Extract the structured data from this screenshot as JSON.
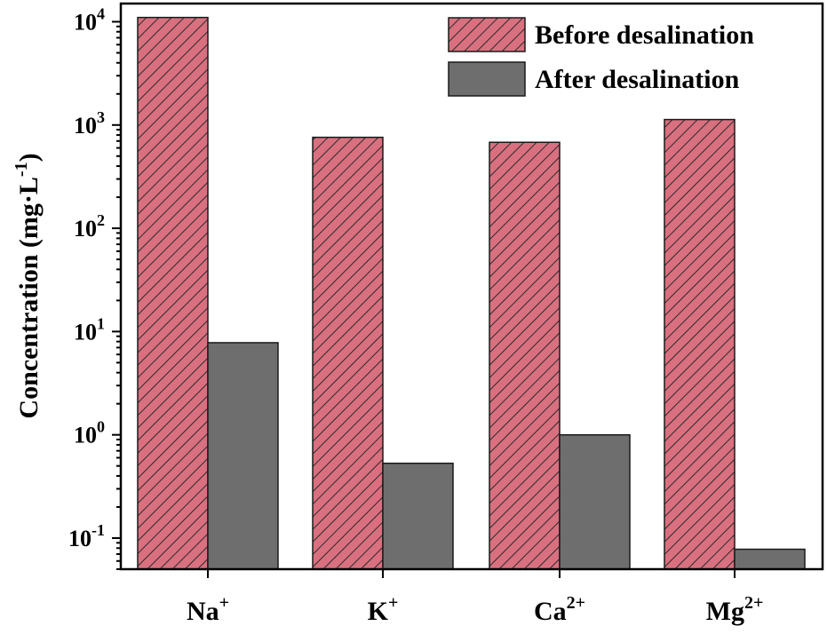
{
  "chart_data": {
    "type": "bar",
    "title": "",
    "xlabel": "",
    "ylabel": "Concentration (mg·L",
    "ylabel_exponent": "-1",
    "ylabel_suffix": ")",
    "yscale": "log",
    "ylim": [
      0.05,
      15000
    ],
    "yticks": [
      {
        "base": "10",
        "exp": "-1",
        "value": 0.1
      },
      {
        "base": "10",
        "exp": "0",
        "value": 1
      },
      {
        "base": "10",
        "exp": "1",
        "value": 10
      },
      {
        "base": "10",
        "exp": "2",
        "value": 100
      },
      {
        "base": "10",
        "exp": "3",
        "value": 1000
      },
      {
        "base": "10",
        "exp": "4",
        "value": 10000
      }
    ],
    "categories": [
      {
        "base": "Na",
        "sup": "+"
      },
      {
        "base": "K",
        "sup": "+"
      },
      {
        "base": "Ca",
        "sup": "2+"
      },
      {
        "base": "Mg",
        "sup": "2+"
      }
    ],
    "series": [
      {
        "name": "Before desalination",
        "values": [
          11000,
          760,
          680,
          1130
        ],
        "color": "#d9707f",
        "pattern": "diagonal-hatch"
      },
      {
        "name": "After desalination",
        "values": [
          7.8,
          0.53,
          1.0,
          0.078
        ],
        "color": "#6e6e6e",
        "pattern": "solid"
      }
    ],
    "legend": "top-right",
    "grid": false
  }
}
